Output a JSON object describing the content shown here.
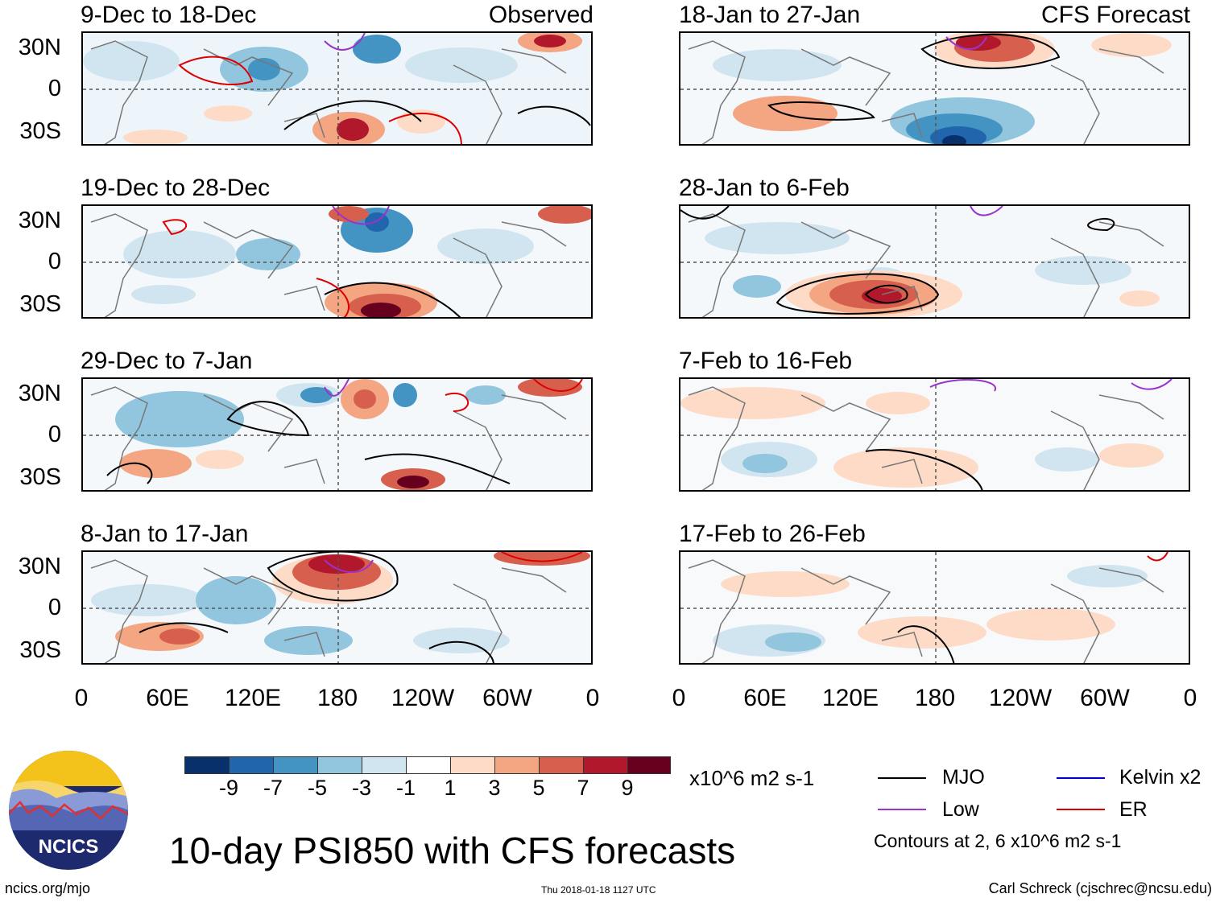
{
  "observed_label": "Observed",
  "forecast_label": "CFS Forecast",
  "left_panels": [
    {
      "title": "9-Dec to 18-Dec"
    },
    {
      "title": "19-Dec to 28-Dec"
    },
    {
      "title": "29-Dec to 7-Jan"
    },
    {
      "title": "8-Jan to 17-Jan"
    }
  ],
  "right_panels": [
    {
      "title": "18-Jan to 27-Jan"
    },
    {
      "title": "28-Jan to 6-Feb"
    },
    {
      "title": "7-Feb to 16-Feb"
    },
    {
      "title": "17-Feb to 26-Feb"
    }
  ],
  "y_ticks": [
    "30N",
    "0",
    "30S"
  ],
  "x_ticks": [
    "0",
    "60E",
    "120E",
    "180",
    "120W",
    "60W",
    "0"
  ],
  "colorbar": {
    "colors": [
      "#08306b",
      "#2166ac",
      "#4393c3",
      "#92c5de",
      "#d1e5f0",
      "#ffffff",
      "#fddbc7",
      "#f4a582",
      "#d6604d",
      "#b2182b",
      "#67001f"
    ],
    "labels": [
      "-9",
      "-7",
      "-5",
      "-3",
      "-1",
      "1",
      "3",
      "5",
      "7",
      "9"
    ],
    "units": "x10^6 m2 s-1"
  },
  "legend": [
    {
      "label": "MJO",
      "color": "#000000"
    },
    {
      "label": "Kelvin x2",
      "color": "#0000cc"
    },
    {
      "label": "Low",
      "color": "#9933cc"
    },
    {
      "label": "ER",
      "color": "#dd0000"
    }
  ],
  "contour_note": "Contours at 2, 6 x10^6 m2 s-1",
  "main_title": "10-day PSI850 with CFS forecasts",
  "logo_text": "NCICS",
  "footer": {
    "left": "ncics.org/mjo",
    "middle": "Thu 2018-01-18 1127 UTC",
    "right": "Carl Schreck (cjschrec@ncsu.edu)"
  }
}
